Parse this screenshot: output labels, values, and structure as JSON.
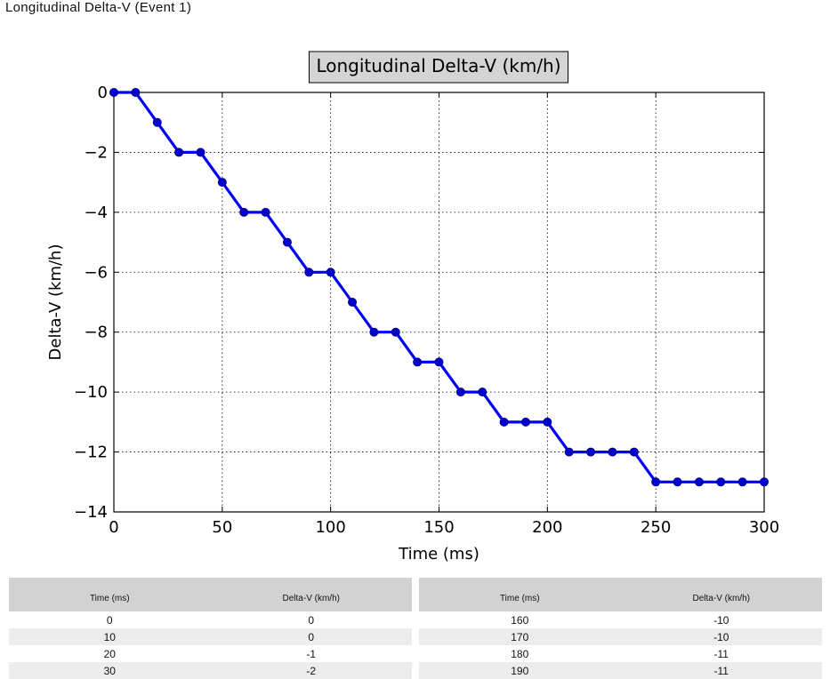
{
  "page": {
    "heading": "Longitudinal Delta-V (Event 1)"
  },
  "chart_data": {
    "type": "line",
    "title": "Longitudinal Delta-V (km/h)",
    "xlabel": "Time (ms)",
    "ylabel": "Delta-V (km/h)",
    "xlim": [
      0,
      300
    ],
    "ylim": [
      -14,
      0
    ],
    "x_ticks": [
      0,
      50,
      100,
      150,
      200,
      250,
      300
    ],
    "y_ticks": [
      0,
      -2,
      -4,
      -6,
      -8,
      -10,
      -12,
      -14
    ],
    "grid": true,
    "line_color": "#0000ff",
    "marker_color": "#0000cc",
    "x": [
      0,
      10,
      20,
      30,
      40,
      50,
      60,
      70,
      80,
      90,
      100,
      110,
      120,
      130,
      140,
      150,
      160,
      170,
      180,
      190,
      200,
      210,
      220,
      230,
      240,
      250,
      260,
      270,
      280,
      290,
      300
    ],
    "y": [
      0,
      0,
      -1,
      -2,
      -2,
      -3,
      -4,
      -4,
      -5,
      -6,
      -6,
      -7,
      -8,
      -8,
      -9,
      -9,
      -10,
      -10,
      -11,
      -11,
      -11,
      -12,
      -12,
      -12,
      -12,
      -13,
      -13,
      -13,
      -13,
      -13,
      -13
    ]
  },
  "tables": [
    {
      "headers": [
        "Time (ms)",
        "Delta-V (km/h)"
      ],
      "rows": [
        [
          "0",
          "0"
        ],
        [
          "10",
          "0"
        ],
        [
          "20",
          "-1"
        ],
        [
          "30",
          "-2"
        ]
      ]
    },
    {
      "headers": [
        "Time (ms)",
        "Delta-V (km/h)"
      ],
      "rows": [
        [
          "160",
          "-10"
        ],
        [
          "170",
          "-10"
        ],
        [
          "180",
          "-11"
        ],
        [
          "190",
          "-11"
        ]
      ]
    }
  ]
}
